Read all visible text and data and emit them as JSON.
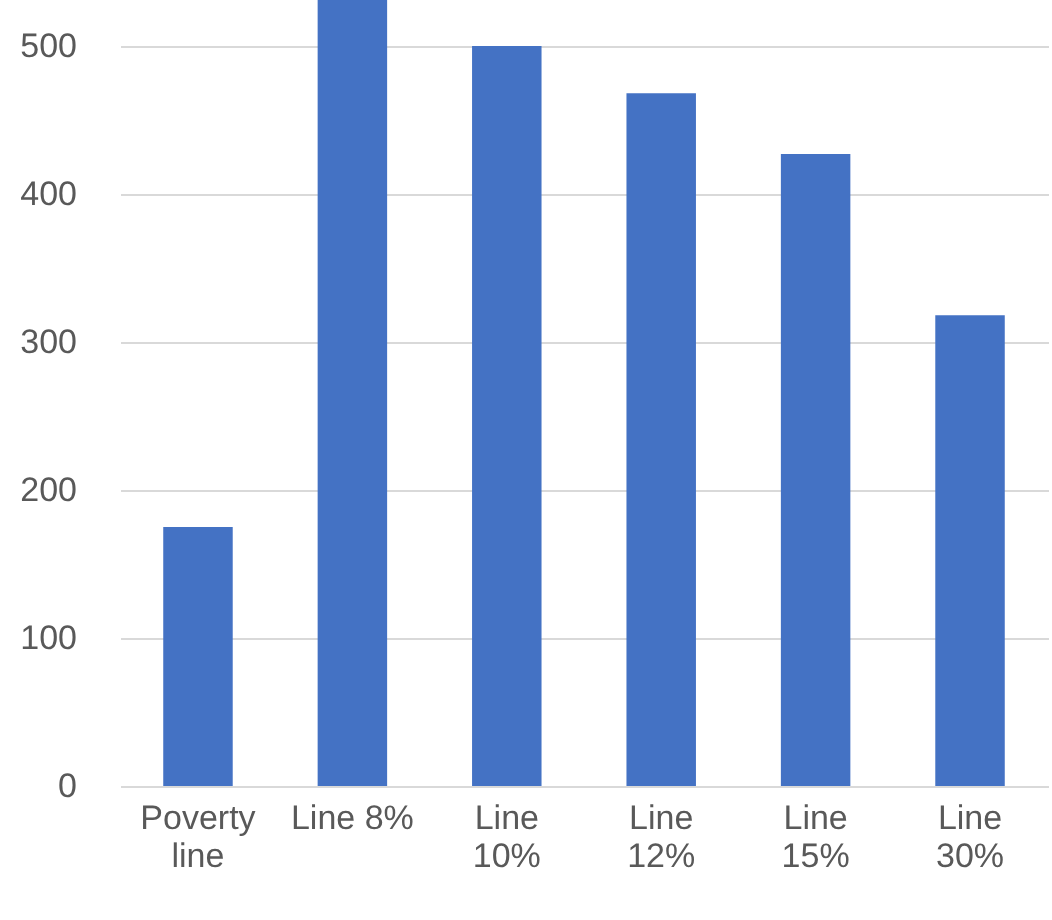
{
  "chart_data": {
    "type": "bar",
    "categories": [
      "Poverty line",
      "Line 8%",
      "Line 10%",
      "Line 12%",
      "Line 15%",
      "Line 30%"
    ],
    "values": [
      175,
      531,
      500,
      468,
      427,
      318
    ],
    "color": "#4472c4",
    "ylim": [
      0,
      531
    ],
    "yticks": [
      0,
      100,
      200,
      300,
      400,
      500
    ],
    "grid": "y"
  }
}
